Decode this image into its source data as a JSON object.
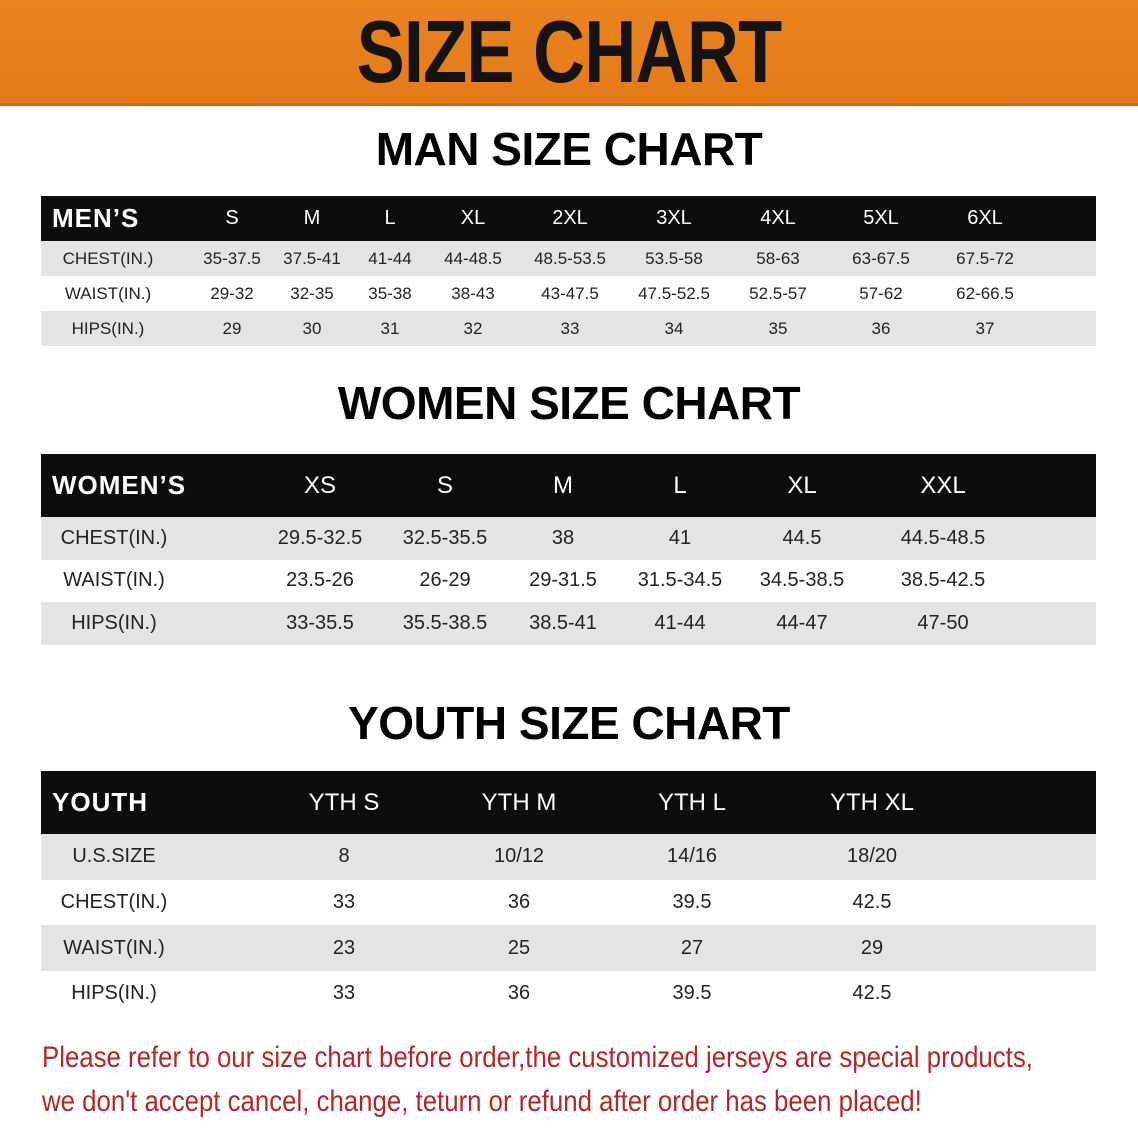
{
  "banner": {
    "title": "SIZE CHART"
  },
  "colors": {
    "banner": "#E8801E",
    "header_row": "#0D0D0D",
    "stripe": "#E4E4E4",
    "notice": "#B3262A"
  },
  "men": {
    "title": "MAN SIZE CHART",
    "header_label": "MEN’S",
    "columns": [
      "S",
      "M",
      "L",
      "XL",
      "2XL",
      "3XL",
      "4XL",
      "5XL",
      "6XL"
    ],
    "rows": [
      {
        "label": "CHEST(IN.)",
        "values": [
          "35-37.5",
          "37.5-41",
          "41-44",
          "44-48.5",
          "48.5-53.5",
          "53.5-58",
          "58-63",
          "63-67.5",
          "67.5-72"
        ]
      },
      {
        "label": "WAIST(IN.)",
        "values": [
          "29-32",
          "32-35",
          "35-38",
          "38-43",
          "43-47.5",
          "47.5-52.5",
          "52.5-57",
          "57-62",
          "62-66.5"
        ]
      },
      {
        "label": "HIPS(IN.)",
        "values": [
          "29",
          "30",
          "31",
          "32",
          "33",
          "34",
          "35",
          "36",
          "37"
        ]
      }
    ]
  },
  "women": {
    "title": "WOMEN SIZE CHART",
    "header_label": "WOMEN’S",
    "columns": [
      "XS",
      "S",
      "M",
      "L",
      "XL",
      "XXL"
    ],
    "rows": [
      {
        "label": "CHEST(IN.)",
        "values": [
          "29.5-32.5",
          "32.5-35.5",
          "38",
          "41",
          "44.5",
          "44.5-48.5"
        ]
      },
      {
        "label": "WAIST(IN.)",
        "values": [
          "23.5-26",
          "26-29",
          "29-31.5",
          "31.5-34.5",
          "34.5-38.5",
          "38.5-42.5"
        ]
      },
      {
        "label": "HIPS(IN.)",
        "values": [
          "33-35.5",
          "35.5-38.5",
          "38.5-41",
          "41-44",
          "44-47",
          "47-50"
        ]
      }
    ]
  },
  "youth": {
    "title": "YOUTH SIZE CHART",
    "header_label": "YOUTH",
    "columns": [
      "YTH S",
      "YTH M",
      "YTH L",
      "YTH XL"
    ],
    "rows": [
      {
        "label": "U.S.SIZE",
        "values": [
          "8",
          "10/12",
          "14/16",
          "18/20"
        ]
      },
      {
        "label": "CHEST(IN.)",
        "values": [
          "33",
          "36",
          "39.5",
          "42.5"
        ]
      },
      {
        "label": "WAIST(IN.)",
        "values": [
          "23",
          "25",
          "27",
          "29"
        ]
      },
      {
        "label": "HIPS(IN.)",
        "values": [
          "33",
          "36",
          "39.5",
          "42.5"
        ]
      }
    ]
  },
  "notice": {
    "line1": "Please refer to our size chart before order,the customized jerseys are special products,",
    "line2": "we don't accept cancel, change, teturn or refund after order has been placed!"
  }
}
